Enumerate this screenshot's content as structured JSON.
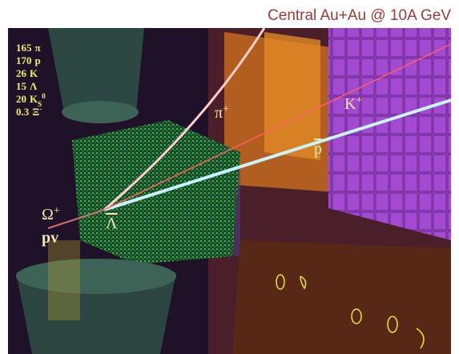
{
  "header": {
    "title": "Central Au+Au @ 10A GeV"
  },
  "multiplicities": [
    {
      "count": "165",
      "particle": "π"
    },
    {
      "count": "170",
      "particle": "p"
    },
    {
      "count": "26",
      "particle": "K"
    },
    {
      "count": "15",
      "particle": "Λ"
    },
    {
      "count": "20",
      "particle": "K",
      "sub": "S",
      "sup": "0"
    },
    {
      "count": "0.3",
      "particle": "Ξ",
      "sup": "-"
    }
  ],
  "track_labels": [
    {
      "particle": "π",
      "sup": "+"
    },
    {
      "particle": "K",
      "sup": "+"
    },
    {
      "particle": "p",
      "bar": true
    },
    {
      "particle": "Ω",
      "sup": "+"
    },
    {
      "particle": "Λ",
      "bar": true
    },
    {
      "particle": "pv"
    }
  ]
}
